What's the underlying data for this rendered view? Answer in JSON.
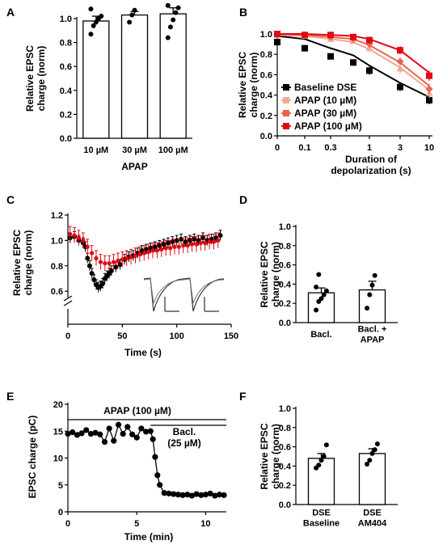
{
  "chart_data": [
    {
      "panel": "A",
      "type": "bar",
      "ylabel": "Relative EPSC\ncharge (norm)",
      "xlabel": "APAP",
      "ylim": [
        0,
        1.0
      ],
      "yticks": [
        0.0,
        0.2,
        0.4,
        0.6,
        0.8,
        1.0
      ],
      "categories": [
        "10 µM",
        "30 µM",
        "100 µM"
      ],
      "values": [
        0.98,
        1.03,
        1.04
      ],
      "errors": [
        0.04,
        0.03,
        0.05
      ],
      "points": [
        [
          0.87,
          0.94,
          0.97,
          1.0,
          1.02,
          1.08
        ],
        [
          0.97,
          1.03,
          1.07
        ],
        [
          0.84,
          0.93,
          0.99,
          1.05,
          1.09,
          1.11
        ]
      ]
    },
    {
      "panel": "B",
      "type": "line",
      "xscale": "log",
      "xlabel": "Duration of\ndepolarization (s)",
      "ylabel": "Relative EPSC\ncharge (norm)",
      "ylim": [
        0,
        1.0
      ],
      "yticks": [
        0.0,
        0.2,
        0.4,
        0.6,
        0.8,
        1.0
      ],
      "xtick_labels": [
        "0",
        "0.1",
        "0.3",
        "1",
        "3",
        "10"
      ],
      "x": [
        0.05,
        0.1,
        0.3,
        0.5,
        1,
        3,
        10
      ],
      "series": [
        {
          "name": "Baseline DSE",
          "color": "#000000",
          "values": [
            0.92,
            0.86,
            0.78,
            0.72,
            0.64,
            0.48,
            0.35
          ],
          "errors": [
            0.02,
            0.03,
            0.03,
            0.03,
            0.04,
            0.04,
            0.04
          ],
          "fit": [
            0.98,
            0.95,
            0.86,
            0.79,
            0.69,
            0.52,
            0.38
          ]
        },
        {
          "name": "APAP (10 µM)",
          "color": "#f4a896",
          "values": [
            0.99,
            0.98,
            0.95,
            0.93,
            0.86,
            0.66,
            0.42
          ],
          "errors": [
            0.02,
            0.02,
            0.03,
            0.03,
            0.04,
            0.05,
            0.05
          ],
          "fit": [
            0.99,
            0.98,
            0.95,
            0.92,
            0.85,
            0.67,
            0.45
          ]
        },
        {
          "name": "APAP (30 µM)",
          "color": "#e8624f",
          "values": [
            0.99,
            0.99,
            0.97,
            0.95,
            0.9,
            0.73,
            0.46
          ],
          "errors": [
            0.02,
            0.02,
            0.02,
            0.03,
            0.03,
            0.04,
            0.05
          ],
          "fit": [
            1.0,
            0.99,
            0.97,
            0.95,
            0.89,
            0.72,
            0.49
          ]
        },
        {
          "name": "APAP (100 µM)",
          "color": "#e30613",
          "values": [
            1.0,
            0.99,
            0.99,
            0.97,
            0.94,
            0.84,
            0.59
          ],
          "errors": [
            0.02,
            0.02,
            0.02,
            0.02,
            0.03,
            0.04,
            0.05
          ],
          "fit": [
            1.0,
            1.0,
            0.99,
            0.98,
            0.95,
            0.84,
            0.62
          ]
        }
      ]
    },
    {
      "panel": "C",
      "type": "scatter",
      "xlabel": "Time (s)",
      "ylabel": "Relative EPSC\ncharge (norm)",
      "xlim": [
        0,
        150
      ],
      "ylim": [
        0.5,
        1.2
      ],
      "xticks": [
        0,
        50,
        100,
        150
      ],
      "yticks": [
        0.6,
        0.8,
        1.0,
        1.2
      ],
      "series": [
        {
          "name": "",
          "color": "#000000",
          "t": [
            2,
            6,
            10,
            14,
            16,
            18,
            20,
            22,
            24,
            26,
            28,
            30,
            32,
            34,
            36,
            38,
            40,
            44,
            48,
            52,
            56,
            60,
            64,
            68,
            72,
            76,
            80,
            84,
            88,
            92,
            96,
            100,
            104,
            108,
            112,
            116,
            120,
            124,
            128,
            132,
            136,
            140
          ],
          "values": [
            1.02,
            1.03,
            1.0,
            0.98,
            0.95,
            0.86,
            0.8,
            0.74,
            0.69,
            0.65,
            0.63,
            0.64,
            0.66,
            0.7,
            0.72,
            0.74,
            0.76,
            0.79,
            0.81,
            0.85,
            0.87,
            0.88,
            0.9,
            0.92,
            0.93,
            0.94,
            0.95,
            0.96,
            0.97,
            0.98,
            0.99,
            1.0,
            1.01,
            0.99,
            1.0,
            1.01,
            1.0,
            1.02,
            1.0,
            1.01,
            1.02,
            1.04
          ],
          "errors": 0.04
        },
        {
          "name": "",
          "color": "#e30613",
          "t": [
            2,
            6,
            10,
            14,
            18,
            22,
            26,
            30,
            34,
            38,
            42,
            46,
            50,
            54,
            58,
            62,
            66,
            70,
            74,
            78,
            82,
            86,
            90,
            94,
            98,
            102,
            106,
            110,
            114,
            118,
            122,
            126,
            130,
            134,
            138
          ],
          "values": [
            1.05,
            1.04,
            1.02,
            1.0,
            0.95,
            0.9,
            0.86,
            0.83,
            0.82,
            0.82,
            0.83,
            0.84,
            0.85,
            0.86,
            0.87,
            0.88,
            0.89,
            0.9,
            0.91,
            0.92,
            0.92,
            0.93,
            0.94,
            0.94,
            0.95,
            0.95,
            0.96,
            0.96,
            0.97,
            0.97,
            0.98,
            0.98,
            0.99,
            0.99,
            1.0
          ],
          "errors": 0.06
        }
      ]
    },
    {
      "panel": "D",
      "type": "bar",
      "ylabel": "Relative EPSC\ncharge (norm)",
      "ylim": [
        0,
        1.0
      ],
      "yticks": [
        0.0,
        0.2,
        0.4,
        0.6,
        0.8,
        1.0
      ],
      "categories": [
        "Bacl.",
        "Bacl. +\nAPAP"
      ],
      "values": [
        0.31,
        0.34
      ],
      "errors": [
        0.05,
        0.09
      ],
      "points": [
        [
          0.13,
          0.22,
          0.25,
          0.29,
          0.33,
          0.37,
          0.5
        ],
        [
          0.15,
          0.29,
          0.39,
          0.49
        ]
      ]
    },
    {
      "panel": "E",
      "type": "line",
      "xlabel": "Time (min)",
      "ylabel": "EPSC charge (pC)",
      "xlim": [
        0,
        11.5
      ],
      "ylim": [
        0,
        20
      ],
      "xticks": [
        0,
        5,
        10
      ],
      "yticks": [
        0,
        5,
        10,
        15,
        20
      ],
      "annotations": [
        "APAP (100 µM)",
        "Bacl.\n(25 µM)"
      ],
      "series": [
        {
          "name": "",
          "color": "#000000",
          "t": [
            0,
            0.33,
            0.67,
            1,
            1.33,
            1.67,
            2,
            2.33,
            2.67,
            3,
            3.33,
            3.67,
            4,
            4.33,
            4.67,
            5,
            5.33,
            5.67,
            6,
            6.17,
            6.33,
            6.5,
            6.67,
            7,
            7.33,
            7.67,
            8,
            8.33,
            8.67,
            9,
            9.33,
            9.67,
            10,
            10.33,
            10.67,
            11,
            11.33
          ],
          "values": [
            14.5,
            14.8,
            14.3,
            14.6,
            15.2,
            14.5,
            14.7,
            14.4,
            13.0,
            15.5,
            13.2,
            16.2,
            14.5,
            15.8,
            14.4,
            13.8,
            15.5,
            14.9,
            15.0,
            13.5,
            10.2,
            6.8,
            5.0,
            3.5,
            3.4,
            3.3,
            3.2,
            3.1,
            3.2,
            3.0,
            3.3,
            3.1,
            3.2,
            3.4,
            3.0,
            3.2,
            3.1
          ]
        }
      ],
      "bars": [
        {
          "label": "APAP (100 µM)",
          "t_start": 0,
          "t_end": 11.5
        },
        {
          "label": "Bacl.\n(25 µM)",
          "t_start": 6,
          "t_end": 11.5
        }
      ]
    },
    {
      "panel": "F",
      "type": "bar",
      "ylabel": "Relative EPSC\ncharge (norm)",
      "ylim": [
        0,
        1.0
      ],
      "yticks": [
        0.0,
        0.2,
        0.4,
        0.6,
        0.8,
        1.0
      ],
      "categories": [
        "DSE\nBaseline",
        "DSE\nAM404"
      ],
      "values": [
        0.48,
        0.53
      ],
      "errors": [
        0.05,
        0.05
      ],
      "points": [
        [
          0.38,
          0.41,
          0.46,
          0.5,
          0.62
        ],
        [
          0.42,
          0.46,
          0.53,
          0.57,
          0.63
        ]
      ]
    }
  ]
}
